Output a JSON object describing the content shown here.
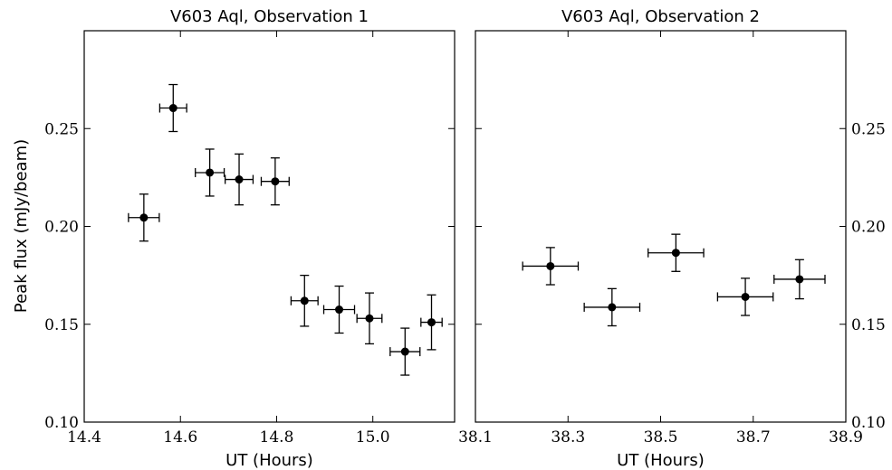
{
  "chart_data": [
    {
      "type": "scatter",
      "title": "V603 Aql, Observation 1",
      "xlabel": "UT (Hours)",
      "ylabel": "Peak flux (mJy/beam)",
      "xlim": [
        14.4,
        15.17
      ],
      "ylim": [
        0.1,
        0.3
      ],
      "xticks": [
        "14.4",
        "14.6",
        "14.8",
        "15.0"
      ],
      "xtick_values": [
        14.4,
        14.6,
        14.8,
        15.0
      ],
      "yticks": [
        "0.10",
        "0.15",
        "0.20",
        "0.25"
      ],
      "ytick_values": [
        0.1,
        0.15,
        0.2,
        0.25
      ],
      "ytick_side": "left",
      "grid": false,
      "points": [
        {
          "x": 14.524,
          "y": 0.2045,
          "xerr": 0.032,
          "yerr": 0.012
        },
        {
          "x": 14.585,
          "y": 0.2605,
          "xerr": 0.028,
          "yerr": 0.012
        },
        {
          "x": 14.661,
          "y": 0.2275,
          "xerr": 0.03,
          "yerr": 0.012
        },
        {
          "x": 14.722,
          "y": 0.224,
          "xerr": 0.029,
          "yerr": 0.013
        },
        {
          "x": 14.797,
          "y": 0.223,
          "xerr": 0.029,
          "yerr": 0.012
        },
        {
          "x": 14.858,
          "y": 0.162,
          "xerr": 0.028,
          "yerr": 0.013
        },
        {
          "x": 14.93,
          "y": 0.1575,
          "xerr": 0.032,
          "yerr": 0.012
        },
        {
          "x": 14.993,
          "y": 0.153,
          "xerr": 0.026,
          "yerr": 0.013
        },
        {
          "x": 15.067,
          "y": 0.136,
          "xerr": 0.031,
          "yerr": 0.012
        },
        {
          "x": 15.122,
          "y": 0.151,
          "xerr": 0.022,
          "yerr": 0.014
        }
      ]
    },
    {
      "type": "scatter",
      "title": "V603 Aql, Observation 2",
      "xlabel": "UT (Hours)",
      "ylabel": "",
      "xlim": [
        38.1,
        38.9
      ],
      "ylim": [
        0.1,
        0.3
      ],
      "xticks": [
        "38.1",
        "38.3",
        "38.5",
        "38.7",
        "38.9"
      ],
      "xtick_values": [
        38.1,
        38.3,
        38.5,
        38.7,
        38.9
      ],
      "yticks": [
        "0.10",
        "0.15",
        "0.20",
        "0.25"
      ],
      "ytick_values": [
        0.1,
        0.15,
        0.2,
        0.25
      ],
      "ytick_side": "right",
      "grid": false,
      "points": [
        {
          "x": 38.262,
          "y": 0.1797,
          "xerr": 0.06,
          "yerr": 0.0095
        },
        {
          "x": 38.395,
          "y": 0.1587,
          "xerr": 0.06,
          "yerr": 0.0095
        },
        {
          "x": 38.533,
          "y": 0.1865,
          "xerr": 0.06,
          "yerr": 0.0095
        },
        {
          "x": 38.683,
          "y": 0.164,
          "xerr": 0.06,
          "yerr": 0.0095
        },
        {
          "x": 38.8,
          "y": 0.173,
          "xerr": 0.055,
          "yerr": 0.01
        }
      ]
    }
  ]
}
